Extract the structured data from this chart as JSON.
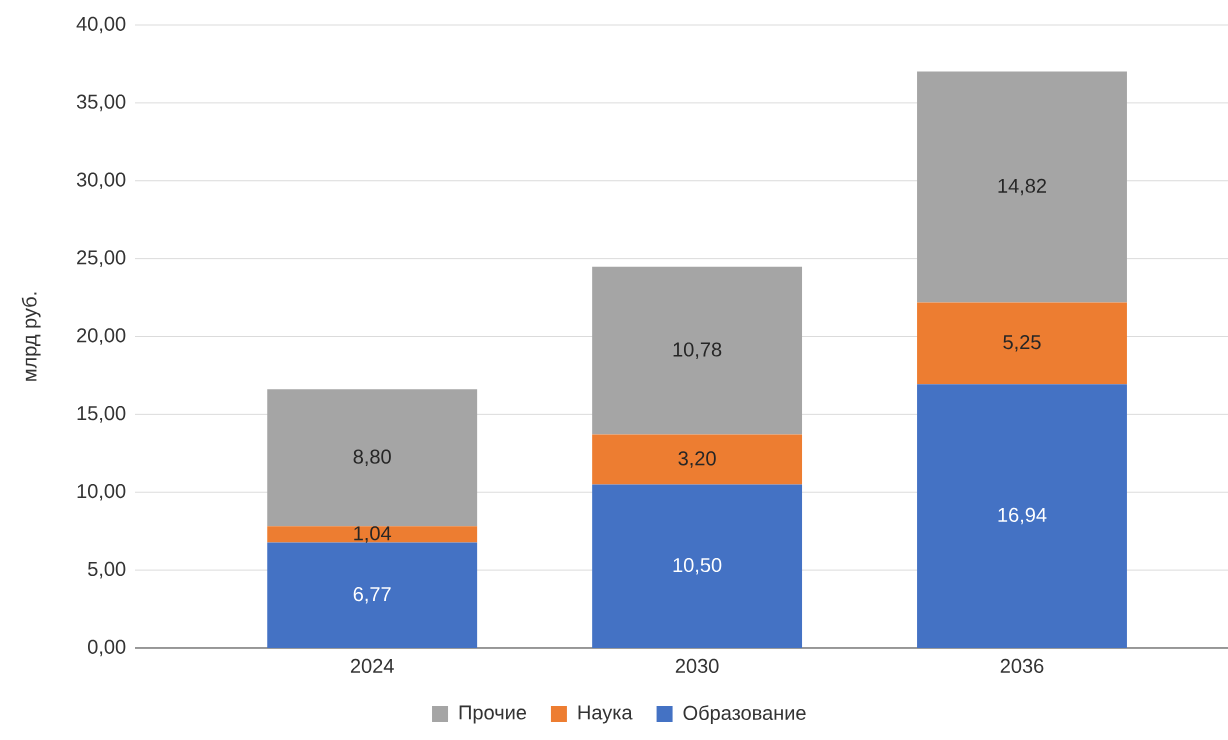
{
  "chart_data": {
    "type": "bar",
    "stacked": true,
    "ylabel": "млрд руб.",
    "categories": [
      "2024",
      "2030",
      "2036"
    ],
    "series": [
      {
        "name": "Образование",
        "color": "#4472c4",
        "values": [
          6.77,
          10.5,
          16.94
        ],
        "value_labels": [
          "6,77",
          "10,50",
          "16,94"
        ]
      },
      {
        "name": "Наука",
        "color": "#ed7d31",
        "values": [
          1.04,
          3.2,
          5.25
        ],
        "value_labels": [
          "1,04",
          "3,20",
          "5,25"
        ]
      },
      {
        "name": "Прочие",
        "color": "#a5a5a5",
        "values": [
          8.8,
          10.78,
          14.82
        ],
        "value_labels": [
          "8,80",
          "10,78",
          "14,82"
        ]
      }
    ],
    "ylim": [
      0,
      40
    ],
    "yticks": [
      {
        "value": 0,
        "label": "0,00"
      },
      {
        "value": 5,
        "label": "5,00"
      },
      {
        "value": 10,
        "label": "10,00"
      },
      {
        "value": 15,
        "label": "15,00"
      },
      {
        "value": 20,
        "label": "20,00"
      },
      {
        "value": 25,
        "label": "25,00"
      },
      {
        "value": 30,
        "label": "30,00"
      },
      {
        "value": 35,
        "label": "35,00"
      },
      {
        "value": 40,
        "label": "40,00"
      }
    ],
    "grid": "y",
    "legend": "bottom"
  }
}
